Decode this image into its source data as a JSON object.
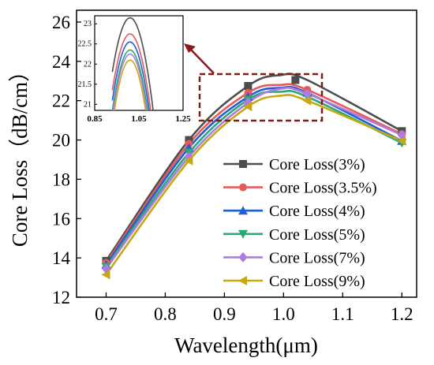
{
  "chart_data": {
    "type": "line",
    "title": "",
    "xlabel": "Wavelength(μm)",
    "ylabel": "Core Loss（dB/cm）",
    "xlim": [
      0.65,
      1.225
    ],
    "ylim": [
      12,
      26.6
    ],
    "xticks": [
      "0.7",
      "0.8",
      "0.9",
      "1.0",
      "1.1",
      "1.2"
    ],
    "yticks": [
      "12",
      "14",
      "16",
      "18",
      "20",
      "22",
      "24",
      "26"
    ],
    "x": [
      0.7,
      0.84,
      0.94,
      1.04,
      1.2
    ],
    "legend_position": "right",
    "series": [
      {
        "name": "Core Loss(3%)",
        "color": "#4d4d4d",
        "marker": "square",
        "values": [
          13.85,
          20.0,
          22.75,
          23.05,
          20.45
        ],
        "marker_x": [
          0.7,
          0.84,
          0.94,
          1.02,
          1.2
        ]
      },
      {
        "name": "Core Loss(3.5%)",
        "color": "#e85a5a",
        "marker": "circle",
        "values": [
          13.75,
          19.8,
          22.4,
          22.55,
          20.3
        ],
        "marker_x": [
          0.7,
          0.84,
          0.94,
          1.04,
          1.2
        ]
      },
      {
        "name": "Core Loss(4%)",
        "color": "#1f5fd4",
        "marker": "triangle-up",
        "values": [
          13.65,
          19.6,
          22.2,
          22.4,
          19.95
        ],
        "marker_x": [
          0.7,
          0.84,
          0.94,
          1.04,
          1.2
        ]
      },
      {
        "name": "Core Loss(5%)",
        "color": "#2aa876",
        "marker": "triangle-down",
        "values": [
          13.55,
          19.35,
          22.05,
          22.2,
          19.85
        ],
        "marker_x": [
          0.7,
          0.84,
          0.94,
          1.04,
          1.2
        ]
      },
      {
        "name": "Core Loss(7%)",
        "color": "#b07be0",
        "marker": "diamond",
        "values": [
          13.45,
          19.15,
          21.9,
          22.35,
          20.25
        ],
        "marker_x": [
          0.7,
          0.84,
          0.94,
          1.04,
          1.2
        ]
      },
      {
        "name": "Core Loss(9%)",
        "color": "#c8a812",
        "marker": "triangle-left",
        "values": [
          13.15,
          18.95,
          21.7,
          22.0,
          19.95
        ],
        "marker_x": [
          0.7,
          0.84,
          0.94,
          1.04,
          1.2
        ]
      }
    ],
    "inset": {
      "xticks": [
        "0.85",
        "1.05",
        "1.25"
      ],
      "yticks": [
        "21",
        "21.5",
        "22",
        "22.5",
        "23"
      ],
      "xlim": [
        0.85,
        1.25
      ],
      "ylim": [
        20.85,
        23.2
      ],
      "peaks": [
        23.15,
        22.75,
        22.55,
        22.35,
        22.25,
        22.1
      ]
    }
  }
}
